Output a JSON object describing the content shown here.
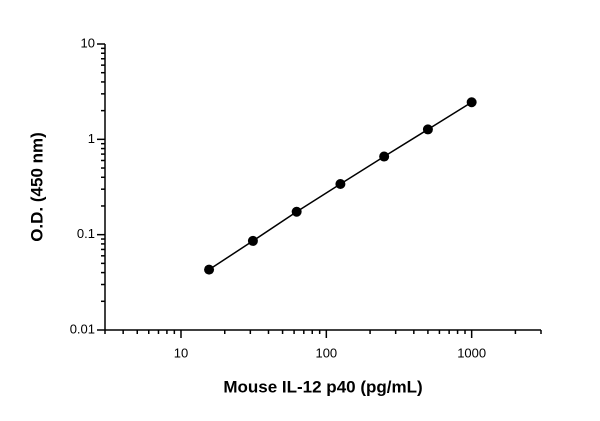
{
  "chart_data": {
    "type": "scatter",
    "x_label": "Mouse IL-12 p40 (pg/mL)",
    "y_label": "O.D. (450 nm)",
    "x": [
      15.6,
      31.25,
      62.5,
      125,
      250,
      500,
      1000
    ],
    "series": [
      {
        "color": "#000000",
        "values": [
          0.043,
          0.086,
          0.174,
          0.34,
          0.66,
          1.27,
          2.45
        ]
      }
    ],
    "xlim": [
      3,
      3000
    ],
    "ylim": [
      0.01,
      10
    ],
    "xticks": [
      10,
      100,
      1000
    ],
    "yticks": [
      0.01,
      0.1,
      1,
      10
    ],
    "xlog": true,
    "ylog": true,
    "minor_ticks": true,
    "connect_points": true
  }
}
